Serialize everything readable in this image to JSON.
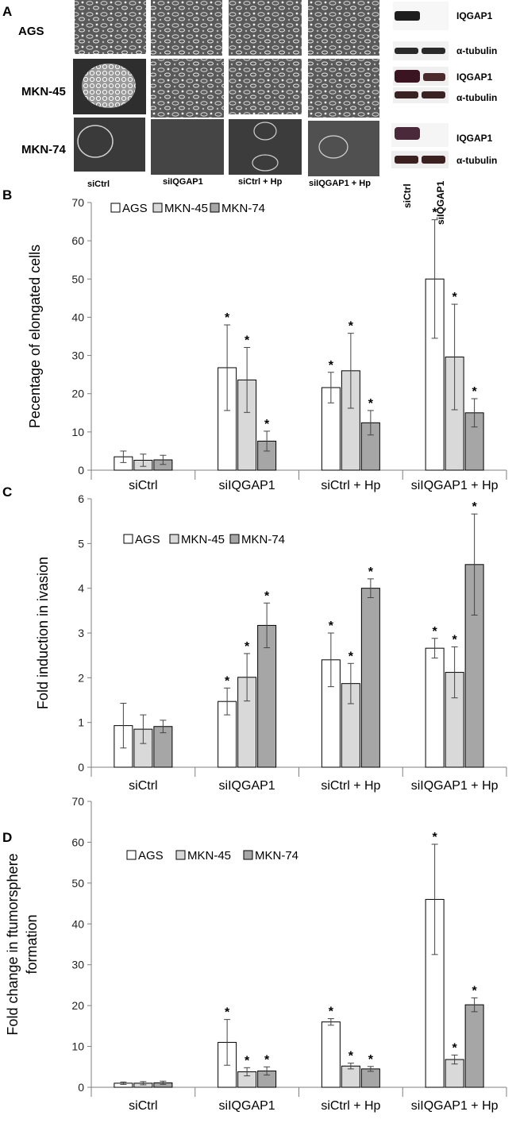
{
  "panel_a": {
    "letter": "A",
    "rows": [
      "AGS",
      "MKN-45",
      "MKN-74"
    ],
    "conditions": [
      "siCtrl",
      "siIQGAP1",
      "siCtrl + Hp",
      "siIQGAP1 + Hp"
    ],
    "blot_labels": [
      "IQGAP1",
      "α-tubulin"
    ],
    "blot_lanes": [
      "siCtrl",
      "siIQGAP1"
    ],
    "colors": {
      "micrograph_dark": "#3a3a3a",
      "micrograph_light": "#cfcfcf",
      "blot_band": "#1e1e1e"
    }
  },
  "chart_data": [
    {
      "letter": "B",
      "type": "bar",
      "categories": [
        "siCtrl",
        "siIQGAP1",
        "siCtrl + Hp",
        "siIQGAP1 + Hp"
      ],
      "series": [
        {
          "name": "AGS",
          "color": "#ffffff",
          "values": [
            3.5,
            26.8,
            21.6,
            50.0
          ],
          "errors": [
            1.5,
            11.2,
            4.0,
            15.5
          ],
          "significant": [
            false,
            true,
            true,
            true
          ]
        },
        {
          "name": "MKN-45",
          "color": "#d9d9d9",
          "values": [
            2.6,
            23.6,
            26.0,
            29.6
          ],
          "errors": [
            1.6,
            8.5,
            9.8,
            13.8
          ],
          "significant": [
            false,
            true,
            true,
            true
          ]
        },
        {
          "name": "MKN-74",
          "color": "#a6a6a6",
          "values": [
            2.7,
            7.6,
            12.4,
            15.0
          ],
          "errors": [
            1.2,
            2.6,
            3.2,
            3.7
          ],
          "significant": [
            false,
            true,
            true,
            true
          ]
        }
      ],
      "ylabel": "Pecentage of elongated cells",
      "xlabel": "",
      "ylim": [
        0,
        70
      ],
      "yticks": [
        0,
        10,
        20,
        30,
        40,
        50,
        60,
        70
      ],
      "significance_marker": "*",
      "legend_position": "top-left"
    },
    {
      "letter": "C",
      "type": "bar",
      "categories": [
        "siCtrl",
        "siIQGAP1",
        "siCtrl + Hp",
        "siIQGAP1 + Hp"
      ],
      "series": [
        {
          "name": "AGS",
          "color": "#ffffff",
          "values": [
            0.93,
            1.47,
            2.4,
            2.66
          ],
          "errors": [
            0.5,
            0.3,
            0.6,
            0.22
          ],
          "significant": [
            false,
            true,
            true,
            true
          ]
        },
        {
          "name": "MKN-45",
          "color": "#d9d9d9",
          "values": [
            0.85,
            2.01,
            1.87,
            2.12
          ],
          "errors": [
            0.32,
            0.53,
            0.45,
            0.57
          ],
          "significant": [
            false,
            true,
            true,
            true
          ]
        },
        {
          "name": "MKN-74",
          "color": "#a6a6a6",
          "values": [
            0.91,
            3.17,
            4.0,
            4.53
          ],
          "errors": [
            0.14,
            0.5,
            0.21,
            1.13
          ],
          "significant": [
            false,
            true,
            true,
            true
          ]
        }
      ],
      "ylabel": "Fold induction in ivasion",
      "xlabel": "",
      "ylim": [
        0,
        6
      ],
      "yticks": [
        0,
        1,
        2,
        3,
        4,
        5,
        6
      ],
      "significance_marker": "*",
      "legend_position": "top-left"
    },
    {
      "letter": "D",
      "type": "bar",
      "categories": [
        "siCtrl",
        "siIQGAP1",
        "siCtrl + Hp",
        "siIQGAP1 + Hp"
      ],
      "series": [
        {
          "name": "AGS",
          "color": "#ffffff",
          "values": [
            1.0,
            11.0,
            16.0,
            46.0
          ],
          "errors": [
            0.3,
            5.6,
            0.8,
            13.5
          ],
          "significant": [
            false,
            true,
            true,
            true
          ]
        },
        {
          "name": "MKN-45",
          "color": "#d9d9d9",
          "values": [
            1.0,
            3.8,
            5.2,
            6.8
          ],
          "errors": [
            0.4,
            1.0,
            0.7,
            1.1
          ],
          "significant": [
            false,
            true,
            true,
            true
          ]
        },
        {
          "name": "MKN-74",
          "color": "#a6a6a6",
          "values": [
            1.1,
            4.0,
            4.5,
            20.2
          ],
          "errors": [
            0.4,
            1.0,
            0.6,
            1.7
          ],
          "significant": [
            false,
            true,
            true,
            true
          ]
        }
      ],
      "ylabel": "Fold change in ftumorsphere formation",
      "ylabel_lines": [
        "Fold change in ftumorsphere",
        "formation"
      ],
      "xlabel": "",
      "ylim": [
        0,
        70
      ],
      "yticks": [
        0,
        10,
        20,
        30,
        40,
        50,
        60,
        70
      ],
      "significance_marker": "*",
      "legend_position": "top-left"
    }
  ]
}
